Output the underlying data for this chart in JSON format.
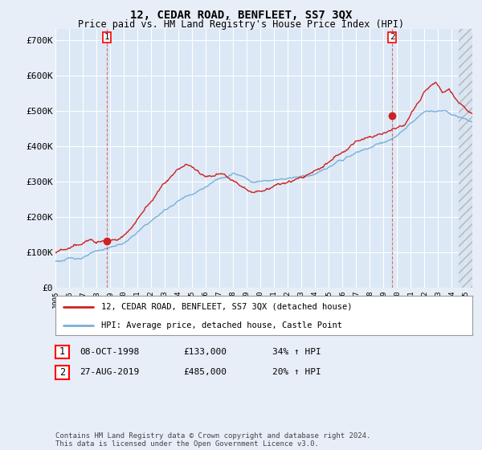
{
  "title": "12, CEDAR ROAD, BENFLEET, SS7 3QX",
  "subtitle": "Price paid vs. HM Land Registry's House Price Index (HPI)",
  "background_color": "#e8eef8",
  "plot_background": "#dce8f5",
  "grid_color": "#ffffff",
  "red_color": "#cc2222",
  "blue_color": "#7ab0d8",
  "hatch_color": "#cccccc",
  "ylim": [
    0,
    730000
  ],
  "yticks": [
    0,
    100000,
    200000,
    300000,
    400000,
    500000,
    600000,
    700000
  ],
  "ytick_labels": [
    "£0",
    "£100K",
    "£200K",
    "£300K",
    "£400K",
    "£500K",
    "£600K",
    "£700K"
  ],
  "sale1_year": 1998.77,
  "sale1_price": 133000,
  "sale2_year": 2019.65,
  "sale2_price": 485000,
  "legend_line1": "12, CEDAR ROAD, BENFLEET, SS7 3QX (detached house)",
  "legend_line2": "HPI: Average price, detached house, Castle Point",
  "table_row1": [
    "1",
    "08-OCT-1998",
    "£133,000",
    "34% ↑ HPI"
  ],
  "table_row2": [
    "2",
    "27-AUG-2019",
    "£485,000",
    "20% ↑ HPI"
  ],
  "footnote": "Contains HM Land Registry data © Crown copyright and database right 2024.\nThis data is licensed under the Open Government Licence v3.0.",
  "xmin": 1995.0,
  "xmax": 2025.5,
  "hatch_start": 2024.5
}
